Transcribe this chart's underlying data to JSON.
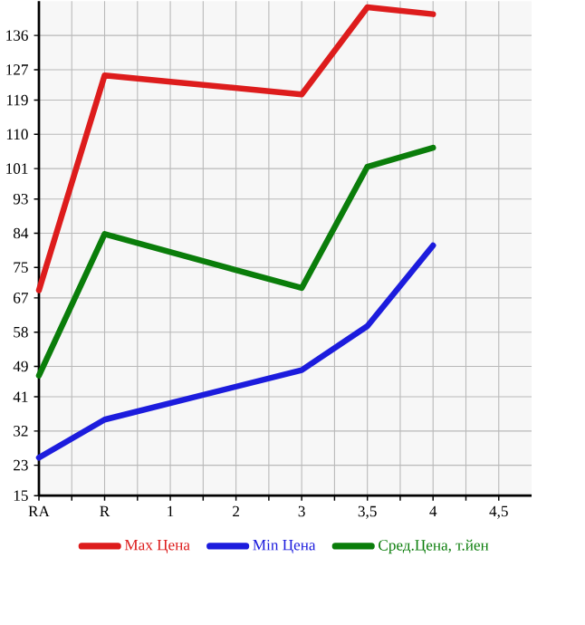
{
  "chart_data": {
    "type": "line",
    "categories": [
      "RA",
      "R",
      "1",
      "2",
      "3",
      "3,5",
      "4",
      "4,5"
    ],
    "series": [
      {
        "name": "Max Цена",
        "color": "#dd1c1c",
        "values": [
          69,
          125.5,
          null,
          null,
          120.5,
          143.4,
          141.6,
          null
        ]
      },
      {
        "name": "Min Цена",
        "color": "#1c1cdd",
        "values": [
          25,
          35,
          null,
          null,
          48,
          59.6,
          80.8,
          null
        ]
      },
      {
        "name": "Сред.Цена, т.йен",
        "color": "#0a7d0a",
        "values": [
          46.6,
          83.8,
          null,
          null,
          69.6,
          101.5,
          106.5,
          null
        ]
      }
    ],
    "ylim": [
      15,
      145
    ],
    "yticks": [
      15,
      23,
      32,
      41,
      49,
      58,
      67,
      75,
      84,
      93,
      101,
      110,
      119,
      127,
      136
    ],
    "grid": true,
    "legend": "bottom",
    "marker": "none",
    "line_style": "solid"
  }
}
